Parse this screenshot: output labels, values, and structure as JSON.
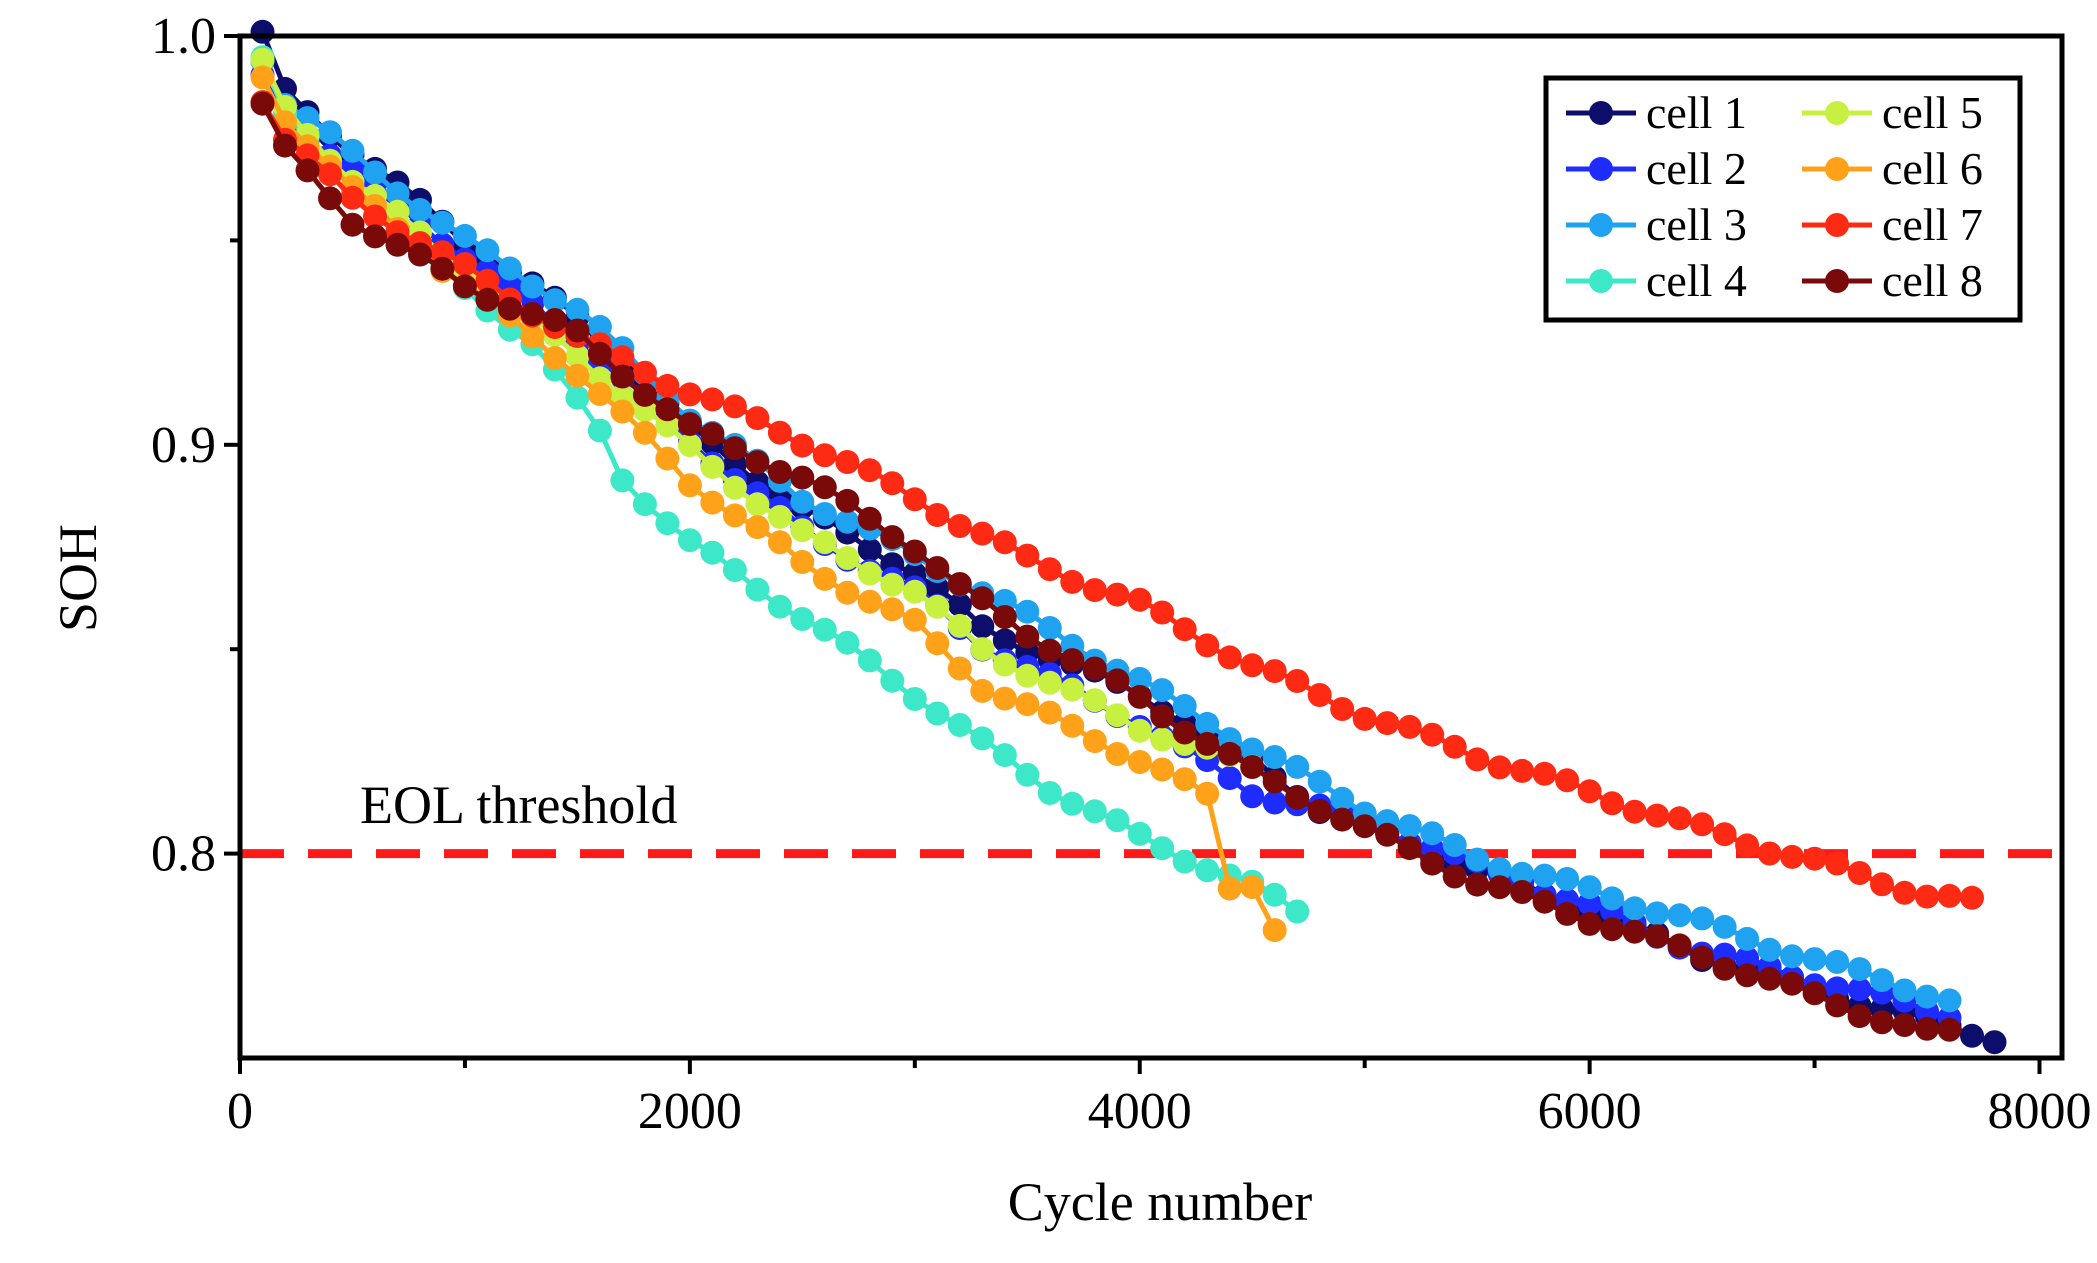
{
  "chart_data": {
    "type": "line",
    "title": "",
    "xlabel": "Cycle number",
    "ylabel": "SOH",
    "xlim": [
      0,
      8100
    ],
    "ylim": [
      0.75,
      1.0
    ],
    "xticks": [
      0,
      2000,
      4000,
      6000,
      8000
    ],
    "xtick_labels": [
      "0",
      "2000",
      "4000",
      "6000",
      "8000"
    ],
    "xminor": [
      1000,
      3000,
      5000,
      7000
    ],
    "yticks": [
      0.8,
      0.9,
      1.0
    ],
    "ytick_labels": [
      "0.8",
      "0.9",
      "1.0"
    ],
    "yminor": [
      0.85,
      0.95
    ],
    "grid": false,
    "legend_position": "top-right",
    "annotations": [
      {
        "label": "EOL threshold",
        "value": 0.8,
        "color": "#ff1a1a",
        "style": "dashed"
      }
    ],
    "series": [
      {
        "name": "cell 1",
        "color": "#0d0d6b",
        "x_start": 100,
        "x_end": 7800,
        "points": [
          [
            100,
            1.0
          ],
          [
            200,
            0.986
          ],
          [
            500,
            0.972
          ],
          [
            1000,
            0.95
          ],
          [
            1500,
            0.931
          ],
          [
            2000,
            0.904
          ],
          [
            2500,
            0.884
          ],
          [
            3000,
            0.869
          ],
          [
            3300,
            0.855
          ],
          [
            4000,
            0.839
          ],
          [
            4500,
            0.823
          ],
          [
            4800,
            0.811
          ],
          [
            5000,
            0.806
          ],
          [
            5500,
            0.796
          ],
          [
            6000,
            0.786
          ],
          [
            6500,
            0.775
          ],
          [
            7000,
            0.767
          ],
          [
            7500,
            0.759
          ],
          [
            7800,
            0.755
          ]
        ]
      },
      {
        "name": "cell 2",
        "color": "#1f2cff",
        "x_start": 100,
        "x_end": 7600,
        "points": [
          [
            100,
            0.99
          ],
          [
            200,
            0.98
          ],
          [
            500,
            0.967
          ],
          [
            1000,
            0.946
          ],
          [
            1500,
            0.926
          ],
          [
            2000,
            0.901
          ],
          [
            2500,
            0.879
          ],
          [
            3000,
            0.864
          ],
          [
            3300,
            0.851
          ],
          [
            4000,
            0.832
          ],
          [
            4500,
            0.815
          ],
          [
            5000,
            0.808
          ],
          [
            5500,
            0.797
          ],
          [
            6000,
            0.787
          ],
          [
            6500,
            0.776
          ],
          [
            7000,
            0.769
          ],
          [
            7500,
            0.762
          ],
          [
            7600,
            0.761
          ]
        ]
      },
      {
        "name": "cell 3",
        "color": "#1fa3f0",
        "x_start": 100,
        "x_end": 7600,
        "points": [
          [
            100,
            0.995
          ],
          [
            200,
            0.984
          ],
          [
            500,
            0.971
          ],
          [
            1000,
            0.95
          ],
          [
            1500,
            0.933
          ],
          [
            2000,
            0.907
          ],
          [
            2500,
            0.887
          ],
          [
            3000,
            0.873
          ],
          [
            3500,
            0.858
          ],
          [
            4000,
            0.842
          ],
          [
            4500,
            0.826
          ],
          [
            5000,
            0.811
          ],
          [
            5500,
            0.799
          ],
          [
            6000,
            0.791
          ],
          [
            6500,
            0.783
          ],
          [
            7000,
            0.774
          ],
          [
            7500,
            0.766
          ],
          [
            7600,
            0.764
          ]
        ]
      },
      {
        "name": "cell 4",
        "color": "#3de8c8",
        "x_start": 100,
        "x_end": 4700,
        "points": [
          [
            100,
            0.995
          ],
          [
            200,
            0.98
          ],
          [
            500,
            0.962
          ],
          [
            1000,
            0.938
          ],
          [
            1300,
            0.925
          ],
          [
            1600,
            0.903
          ],
          [
            1700,
            0.892
          ],
          [
            2000,
            0.876
          ],
          [
            2500,
            0.858
          ],
          [
            3000,
            0.839
          ],
          [
            3300,
            0.827
          ],
          [
            3600,
            0.816
          ],
          [
            4000,
            0.804
          ],
          [
            4500,
            0.792
          ],
          [
            4700,
            0.786
          ]
        ]
      },
      {
        "name": "cell 5",
        "color": "#c8f040",
        "x_start": 100,
        "x_end": 4500,
        "points": [
          [
            100,
            0.993
          ],
          [
            200,
            0.982
          ],
          [
            500,
            0.965
          ],
          [
            1000,
            0.942
          ],
          [
            1500,
            0.922
          ],
          [
            2000,
            0.899
          ],
          [
            2500,
            0.878
          ],
          [
            3000,
            0.864
          ],
          [
            3300,
            0.85
          ],
          [
            4000,
            0.831
          ],
          [
            4500,
            0.821
          ]
        ]
      },
      {
        "name": "cell 6",
        "color": "#ffa21a",
        "x_start": 100,
        "x_end": 4600,
        "points": [
          [
            100,
            0.99
          ],
          [
            200,
            0.98
          ],
          [
            500,
            0.962
          ],
          [
            1000,
            0.939
          ],
          [
            1500,
            0.918
          ],
          [
            2000,
            0.891
          ],
          [
            2500,
            0.871
          ],
          [
            3000,
            0.856
          ],
          [
            3300,
            0.841
          ],
          [
            4000,
            0.823
          ],
          [
            4300,
            0.814
          ],
          [
            4400,
            0.792
          ],
          [
            4500,
            0.793
          ],
          [
            4600,
            0.782
          ]
        ]
      },
      {
        "name": "cell 7",
        "color": "#ff2a14",
        "x_start": 100,
        "x_end": 7700,
        "points": [
          [
            100,
            0.985
          ],
          [
            200,
            0.975
          ],
          [
            500,
            0.96
          ],
          [
            1000,
            0.943
          ],
          [
            1500,
            0.926
          ],
          [
            2000,
            0.913
          ],
          [
            2500,
            0.901
          ],
          [
            3000,
            0.887
          ],
          [
            3500,
            0.872
          ],
          [
            4000,
            0.861
          ],
          [
            4500,
            0.846
          ],
          [
            5000,
            0.834
          ],
          [
            5500,
            0.824
          ],
          [
            6000,
            0.815
          ],
          [
            6500,
            0.806
          ],
          [
            7000,
            0.798
          ],
          [
            7500,
            0.79
          ],
          [
            7700,
            0.788
          ]
        ]
      },
      {
        "name": "cell 8",
        "color": "#7a0a0a",
        "x_start": 100,
        "x_end": 7600,
        "points": [
          [
            100,
            0.983
          ],
          [
            200,
            0.972
          ],
          [
            500,
            0.955
          ],
          [
            1000,
            0.939
          ],
          [
            1500,
            0.927
          ],
          [
            2000,
            0.904
          ],
          [
            2500,
            0.892
          ],
          [
            3000,
            0.875
          ],
          [
            3200,
            0.865
          ],
          [
            3500,
            0.854
          ],
          [
            4000,
            0.838
          ],
          [
            4500,
            0.82
          ],
          [
            5000,
            0.806
          ],
          [
            5500,
            0.793
          ],
          [
            6000,
            0.784
          ],
          [
            6500,
            0.775
          ],
          [
            7000,
            0.765
          ],
          [
            7500,
            0.756
          ],
          [
            7600,
            0.756
          ]
        ]
      }
    ]
  }
}
